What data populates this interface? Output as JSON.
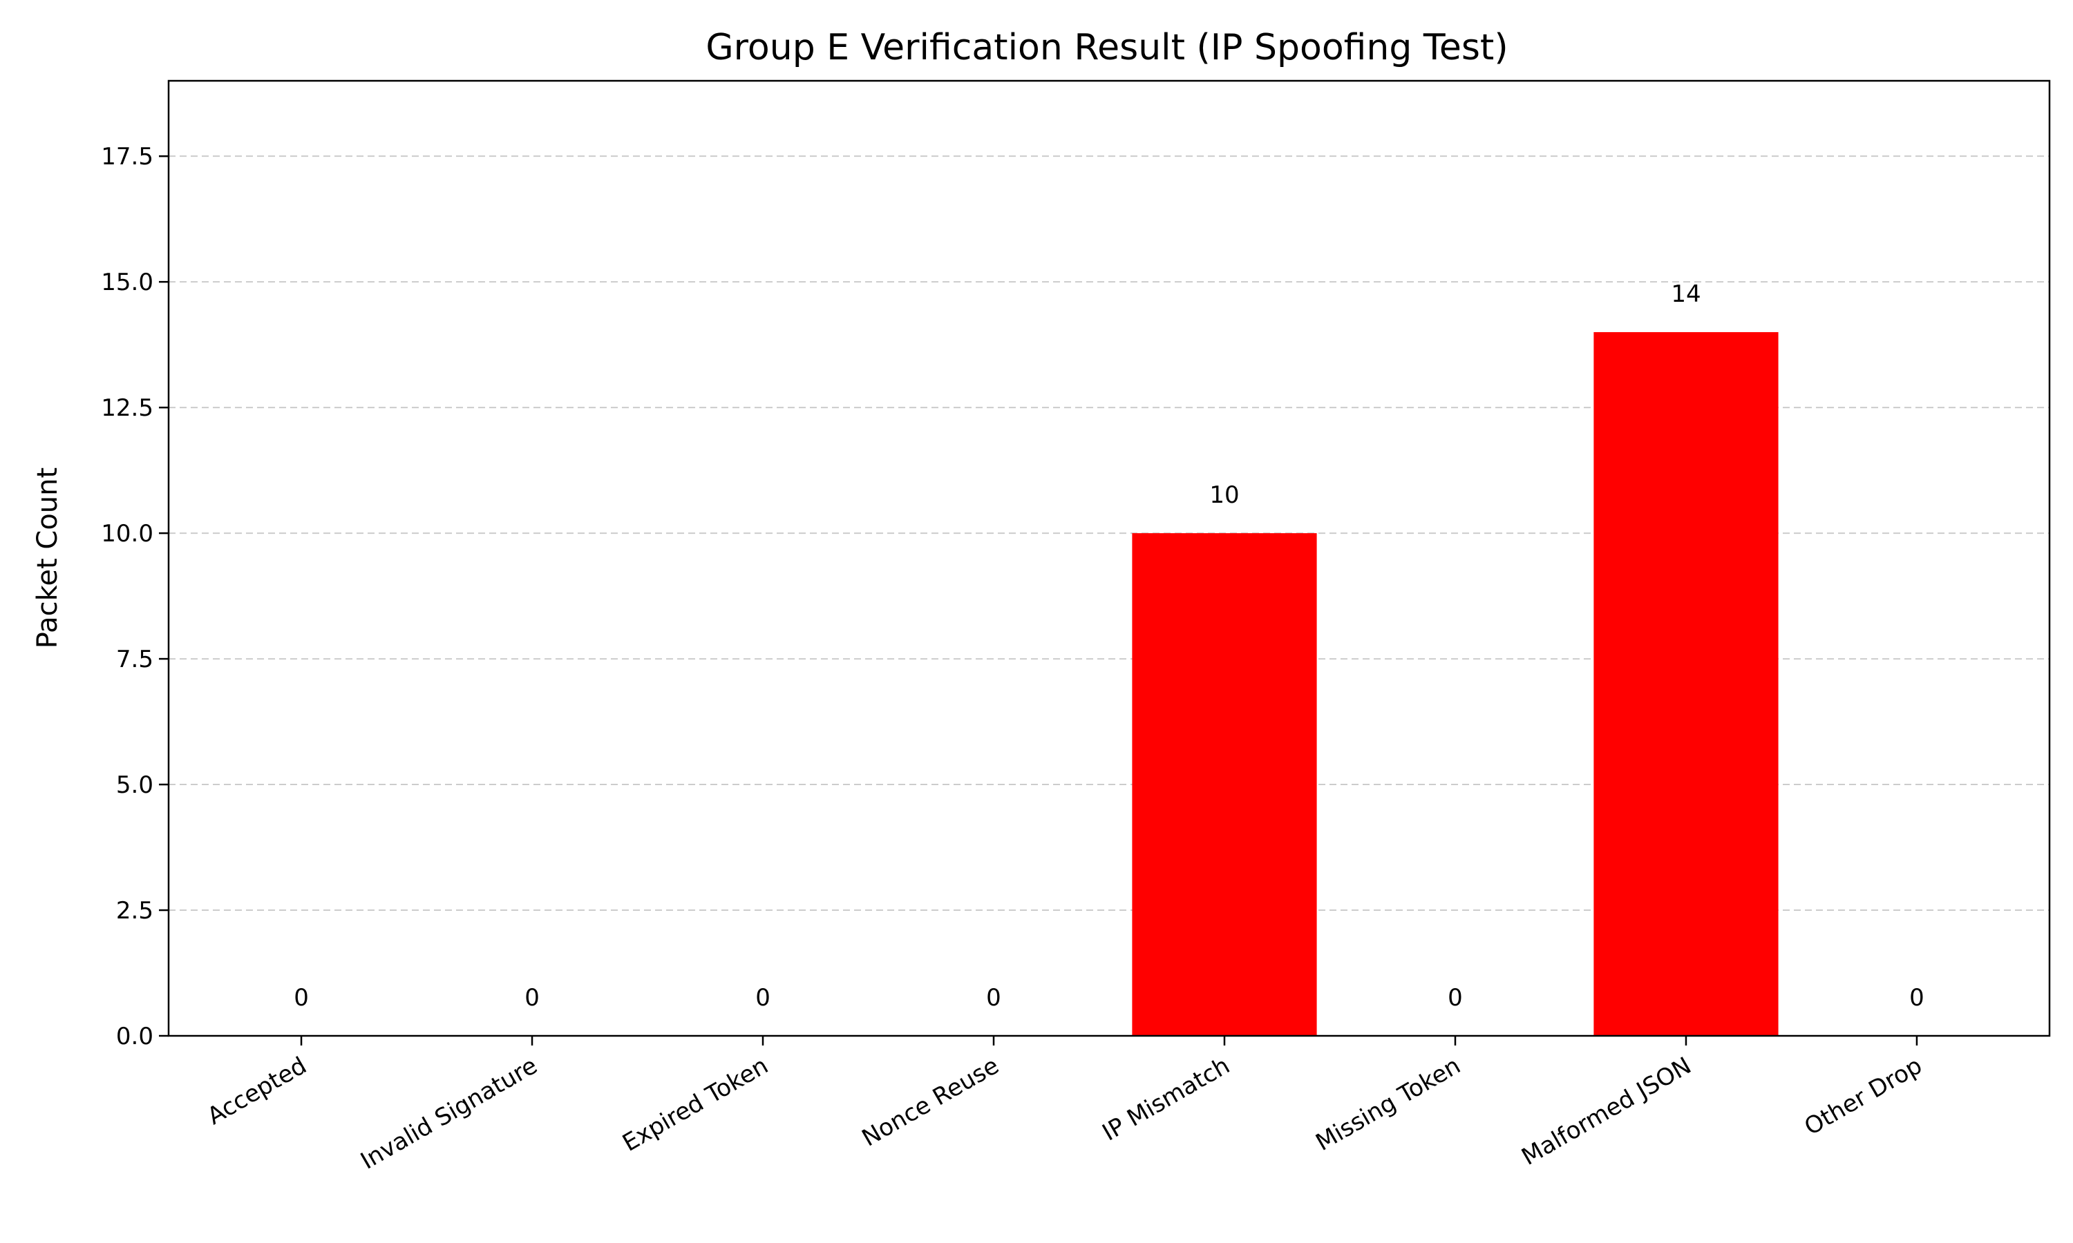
{
  "chart_data": {
    "type": "bar",
    "title": "Group E Verification Result (IP Spoofing Test)",
    "xlabel": "",
    "ylabel": "Packet Count",
    "categories": [
      "Accepted",
      "Invalid Signature",
      "Expired Token",
      "Nonce Reuse",
      "IP Mismatch",
      "Missing Token",
      "Malformed JSON",
      "Other Drop"
    ],
    "values": [
      0,
      0,
      0,
      0,
      10,
      0,
      14,
      0
    ],
    "data_labels": [
      "0",
      "0",
      "0",
      "0",
      "10",
      "0",
      "14",
      "0"
    ],
    "ylim": [
      0,
      19
    ],
    "yticks": [
      0,
      2.5,
      5,
      7.5,
      10,
      12.5,
      15,
      17.5
    ],
    "ytick_labels": [
      "0.0",
      "2.5",
      "5.0",
      "7.5",
      "10.0",
      "12.5",
      "15.0",
      "17.5"
    ],
    "grid": "y dashed",
    "bar_color": "#ff0000",
    "grid_color": "#cccccc",
    "axis_color": "#000000"
  }
}
